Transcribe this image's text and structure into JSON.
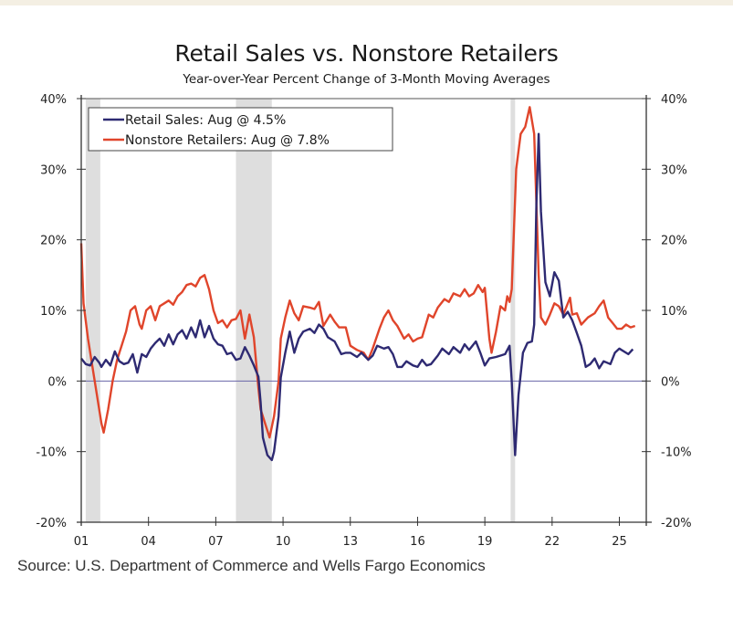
{
  "chart_data": {
    "type": "line",
    "title": "Retail Sales vs. Nonstore Retailers",
    "subtitle": "Year-over-Year Percent Change of 3-Month Moving Averages",
    "source": "Source: U.S. Department of Commerce and Wells Fargo Economics",
    "xlabel": "",
    "ylabel": "",
    "xlim": [
      2001.0,
      2026.2
    ],
    "ylim": [
      -20,
      40
    ],
    "x_ticks": [
      2001,
      2004,
      2007,
      2010,
      2013,
      2016,
      2019,
      2022,
      2025
    ],
    "x_tick_labels": [
      "01",
      "04",
      "07",
      "10",
      "13",
      "16",
      "19",
      "22",
      "25"
    ],
    "y_ticks": [
      -20,
      -10,
      0,
      10,
      20,
      30,
      40
    ],
    "y_tick_labels": [
      "-20%",
      "-10%",
      "0%",
      "10%",
      "20%",
      "30%",
      "40%"
    ],
    "right_y_tick_labels": [
      "-20%",
      "-10%",
      "0%",
      "10%",
      "20%",
      "30%",
      "40%"
    ],
    "legend_position": "top-left",
    "zero_line": true,
    "recessions": [
      [
        2001.2,
        2001.85
      ],
      [
        2007.9,
        2009.5
      ],
      [
        2020.15,
        2020.35
      ]
    ],
    "colors": {
      "retail": "#2e2a72",
      "nonstore": "#e0452b",
      "recession": "#dedede",
      "zero_line": "#6a66a8"
    },
    "series": [
      {
        "name": "Retail Sales",
        "legend": "Retail Sales: Aug @ 4.5%",
        "color": "#2e2a72",
        "points": [
          [
            2001.0,
            3.2
          ],
          [
            2001.2,
            2.4
          ],
          [
            2001.4,
            2.2
          ],
          [
            2001.6,
            3.4
          ],
          [
            2001.8,
            2.6
          ],
          [
            2001.9,
            2.0
          ],
          [
            2002.1,
            3.0
          ],
          [
            2002.3,
            2.2
          ],
          [
            2002.5,
            4.2
          ],
          [
            2002.7,
            2.8
          ],
          [
            2002.9,
            2.4
          ],
          [
            2003.1,
            2.6
          ],
          [
            2003.3,
            3.8
          ],
          [
            2003.5,
            1.2
          ],
          [
            2003.7,
            3.8
          ],
          [
            2003.9,
            3.4
          ],
          [
            2004.1,
            4.6
          ],
          [
            2004.3,
            5.4
          ],
          [
            2004.5,
            6.0
          ],
          [
            2004.7,
            5.0
          ],
          [
            2004.9,
            6.6
          ],
          [
            2005.1,
            5.2
          ],
          [
            2005.3,
            6.6
          ],
          [
            2005.5,
            7.2
          ],
          [
            2005.7,
            6.0
          ],
          [
            2005.9,
            7.6
          ],
          [
            2006.1,
            6.2
          ],
          [
            2006.3,
            8.6
          ],
          [
            2006.5,
            6.2
          ],
          [
            2006.7,
            7.8
          ],
          [
            2006.9,
            6.0
          ],
          [
            2007.1,
            5.2
          ],
          [
            2007.3,
            5.0
          ],
          [
            2007.5,
            3.8
          ],
          [
            2007.7,
            4.0
          ],
          [
            2007.9,
            3.0
          ],
          [
            2008.1,
            3.2
          ],
          [
            2008.3,
            4.8
          ],
          [
            2008.5,
            3.6
          ],
          [
            2008.7,
            2.2
          ],
          [
            2008.9,
            0.6
          ],
          [
            2009.0,
            -3.0
          ],
          [
            2009.1,
            -8.0
          ],
          [
            2009.3,
            -10.5
          ],
          [
            2009.5,
            -11.2
          ],
          [
            2009.6,
            -10.0
          ],
          [
            2009.8,
            -5.0
          ],
          [
            2009.9,
            0.5
          ],
          [
            2010.1,
            4.0
          ],
          [
            2010.3,
            7.0
          ],
          [
            2010.5,
            4.0
          ],
          [
            2010.7,
            6.0
          ],
          [
            2010.9,
            7.0
          ],
          [
            2011.2,
            7.4
          ],
          [
            2011.4,
            6.8
          ],
          [
            2011.6,
            8.0
          ],
          [
            2011.8,
            7.4
          ],
          [
            2012.0,
            6.2
          ],
          [
            2012.3,
            5.6
          ],
          [
            2012.6,
            3.8
          ],
          [
            2012.8,
            4.0
          ],
          [
            2013.0,
            4.0
          ],
          [
            2013.3,
            3.4
          ],
          [
            2013.5,
            4.0
          ],
          [
            2013.8,
            3.0
          ],
          [
            2014.0,
            3.6
          ],
          [
            2014.2,
            5.0
          ],
          [
            2014.5,
            4.6
          ],
          [
            2014.7,
            4.8
          ],
          [
            2014.9,
            3.8
          ],
          [
            2015.1,
            2.0
          ],
          [
            2015.3,
            2.0
          ],
          [
            2015.5,
            2.8
          ],
          [
            2015.8,
            2.2
          ],
          [
            2016.0,
            2.0
          ],
          [
            2016.2,
            3.0
          ],
          [
            2016.4,
            2.2
          ],
          [
            2016.6,
            2.4
          ],
          [
            2016.9,
            3.6
          ],
          [
            2017.1,
            4.6
          ],
          [
            2017.4,
            3.8
          ],
          [
            2017.6,
            4.8
          ],
          [
            2017.9,
            4.0
          ],
          [
            2018.1,
            5.2
          ],
          [
            2018.3,
            4.4
          ],
          [
            2018.6,
            5.6
          ],
          [
            2018.8,
            4.0
          ],
          [
            2019.0,
            2.2
          ],
          [
            2019.2,
            3.2
          ],
          [
            2019.5,
            3.4
          ],
          [
            2019.7,
            3.6
          ],
          [
            2019.9,
            3.8
          ],
          [
            2020.1,
            5.0
          ],
          [
            2020.2,
            0.0
          ],
          [
            2020.35,
            -10.5
          ],
          [
            2020.5,
            -2.0
          ],
          [
            2020.7,
            4.0
          ],
          [
            2020.9,
            5.4
          ],
          [
            2021.1,
            5.6
          ],
          [
            2021.2,
            8.0
          ],
          [
            2021.3,
            25.0
          ],
          [
            2021.4,
            35.0
          ],
          [
            2021.5,
            24.0
          ],
          [
            2021.7,
            14.0
          ],
          [
            2021.9,
            12.0
          ],
          [
            2022.1,
            15.4
          ],
          [
            2022.3,
            14.2
          ],
          [
            2022.5,
            9.0
          ],
          [
            2022.7,
            9.8
          ],
          [
            2022.9,
            8.6
          ],
          [
            2023.1,
            6.8
          ],
          [
            2023.3,
            5.0
          ],
          [
            2023.5,
            2.0
          ],
          [
            2023.7,
            2.4
          ],
          [
            2023.9,
            3.2
          ],
          [
            2024.1,
            1.8
          ],
          [
            2024.3,
            2.8
          ],
          [
            2024.6,
            2.4
          ],
          [
            2024.8,
            4.0
          ],
          [
            2025.0,
            4.6
          ],
          [
            2025.2,
            4.2
          ],
          [
            2025.4,
            3.8
          ],
          [
            2025.6,
            4.5
          ]
        ]
      },
      {
        "name": "Nonstore Retailers",
        "legend": "Nonstore Retailers: Aug @ 7.8%",
        "color": "#e0452b",
        "points": [
          [
            2001.0,
            19.5
          ],
          [
            2001.1,
            11.0
          ],
          [
            2001.3,
            6.0
          ],
          [
            2001.5,
            2.0
          ],
          [
            2001.7,
            -2.0
          ],
          [
            2001.9,
            -6.0
          ],
          [
            2002.0,
            -7.3
          ],
          [
            2002.2,
            -4.0
          ],
          [
            2002.4,
            0.0
          ],
          [
            2002.6,
            3.0
          ],
          [
            2002.8,
            5.0
          ],
          [
            2003.0,
            7.0
          ],
          [
            2003.2,
            10.0
          ],
          [
            2003.4,
            10.6
          ],
          [
            2003.6,
            8.0
          ],
          [
            2003.7,
            7.4
          ],
          [
            2003.9,
            10.0
          ],
          [
            2004.1,
            10.6
          ],
          [
            2004.3,
            8.6
          ],
          [
            2004.5,
            10.6
          ],
          [
            2004.7,
            11.0
          ],
          [
            2004.9,
            11.4
          ],
          [
            2005.1,
            10.8
          ],
          [
            2005.3,
            12.0
          ],
          [
            2005.5,
            12.6
          ],
          [
            2005.7,
            13.6
          ],
          [
            2005.9,
            13.8
          ],
          [
            2006.1,
            13.4
          ],
          [
            2006.3,
            14.6
          ],
          [
            2006.5,
            15.0
          ],
          [
            2006.7,
            13.0
          ],
          [
            2006.9,
            10.0
          ],
          [
            2007.1,
            8.2
          ],
          [
            2007.3,
            8.6
          ],
          [
            2007.5,
            7.6
          ],
          [
            2007.7,
            8.6
          ],
          [
            2007.9,
            8.8
          ],
          [
            2008.1,
            10.0
          ],
          [
            2008.3,
            6.0
          ],
          [
            2008.5,
            9.4
          ],
          [
            2008.7,
            6.2
          ],
          [
            2008.9,
            -1.0
          ],
          [
            2009.0,
            -4.0
          ],
          [
            2009.2,
            -6.0
          ],
          [
            2009.4,
            -8.0
          ],
          [
            2009.6,
            -5.0
          ],
          [
            2009.8,
            0.0
          ],
          [
            2009.9,
            6.0
          ],
          [
            2010.1,
            9.0
          ],
          [
            2010.3,
            11.4
          ],
          [
            2010.5,
            9.6
          ],
          [
            2010.7,
            8.6
          ],
          [
            2010.9,
            10.6
          ],
          [
            2011.2,
            10.4
          ],
          [
            2011.4,
            10.2
          ],
          [
            2011.6,
            11.2
          ],
          [
            2011.8,
            7.8
          ],
          [
            2012.1,
            9.4
          ],
          [
            2012.3,
            8.4
          ],
          [
            2012.5,
            7.6
          ],
          [
            2012.8,
            7.6
          ],
          [
            2013.0,
            5.0
          ],
          [
            2013.3,
            4.4
          ],
          [
            2013.6,
            4.0
          ],
          [
            2013.8,
            3.0
          ],
          [
            2014.0,
            4.6
          ],
          [
            2014.3,
            7.4
          ],
          [
            2014.5,
            9.0
          ],
          [
            2014.7,
            10.0
          ],
          [
            2014.9,
            8.6
          ],
          [
            2015.1,
            7.8
          ],
          [
            2015.4,
            6.0
          ],
          [
            2015.6,
            6.6
          ],
          [
            2015.8,
            5.6
          ],
          [
            2016.0,
            6.0
          ],
          [
            2016.2,
            6.2
          ],
          [
            2016.5,
            9.4
          ],
          [
            2016.7,
            9.0
          ],
          [
            2016.9,
            10.4
          ],
          [
            2017.2,
            11.6
          ],
          [
            2017.4,
            11.2
          ],
          [
            2017.6,
            12.4
          ],
          [
            2017.9,
            12.0
          ],
          [
            2018.1,
            13.0
          ],
          [
            2018.3,
            12.0
          ],
          [
            2018.5,
            12.4
          ],
          [
            2018.7,
            13.6
          ],
          [
            2018.9,
            12.6
          ],
          [
            2019.0,
            13.2
          ],
          [
            2019.2,
            6.0
          ],
          [
            2019.3,
            4.0
          ],
          [
            2019.5,
            7.0
          ],
          [
            2019.7,
            10.6
          ],
          [
            2019.9,
            10.0
          ],
          [
            2020.0,
            12.0
          ],
          [
            2020.1,
            11.2
          ],
          [
            2020.2,
            13.0
          ],
          [
            2020.4,
            30.0
          ],
          [
            2020.6,
            35.0
          ],
          [
            2020.8,
            36.0
          ],
          [
            2021.0,
            38.8
          ],
          [
            2021.2,
            35.0
          ],
          [
            2021.4,
            15.0
          ],
          [
            2021.5,
            9.0
          ],
          [
            2021.7,
            8.0
          ],
          [
            2021.9,
            9.4
          ],
          [
            2022.1,
            11.0
          ],
          [
            2022.3,
            10.6
          ],
          [
            2022.5,
            9.4
          ],
          [
            2022.8,
            11.8
          ],
          [
            2022.9,
            9.4
          ],
          [
            2023.1,
            9.6
          ],
          [
            2023.3,
            8.0
          ],
          [
            2023.6,
            9.0
          ],
          [
            2023.9,
            9.6
          ],
          [
            2024.1,
            10.6
          ],
          [
            2024.3,
            11.4
          ],
          [
            2024.5,
            9.0
          ],
          [
            2024.7,
            8.2
          ],
          [
            2024.9,
            7.4
          ],
          [
            2025.1,
            7.4
          ],
          [
            2025.3,
            8.0
          ],
          [
            2025.5,
            7.6
          ],
          [
            2025.7,
            7.8
          ]
        ]
      }
    ]
  }
}
